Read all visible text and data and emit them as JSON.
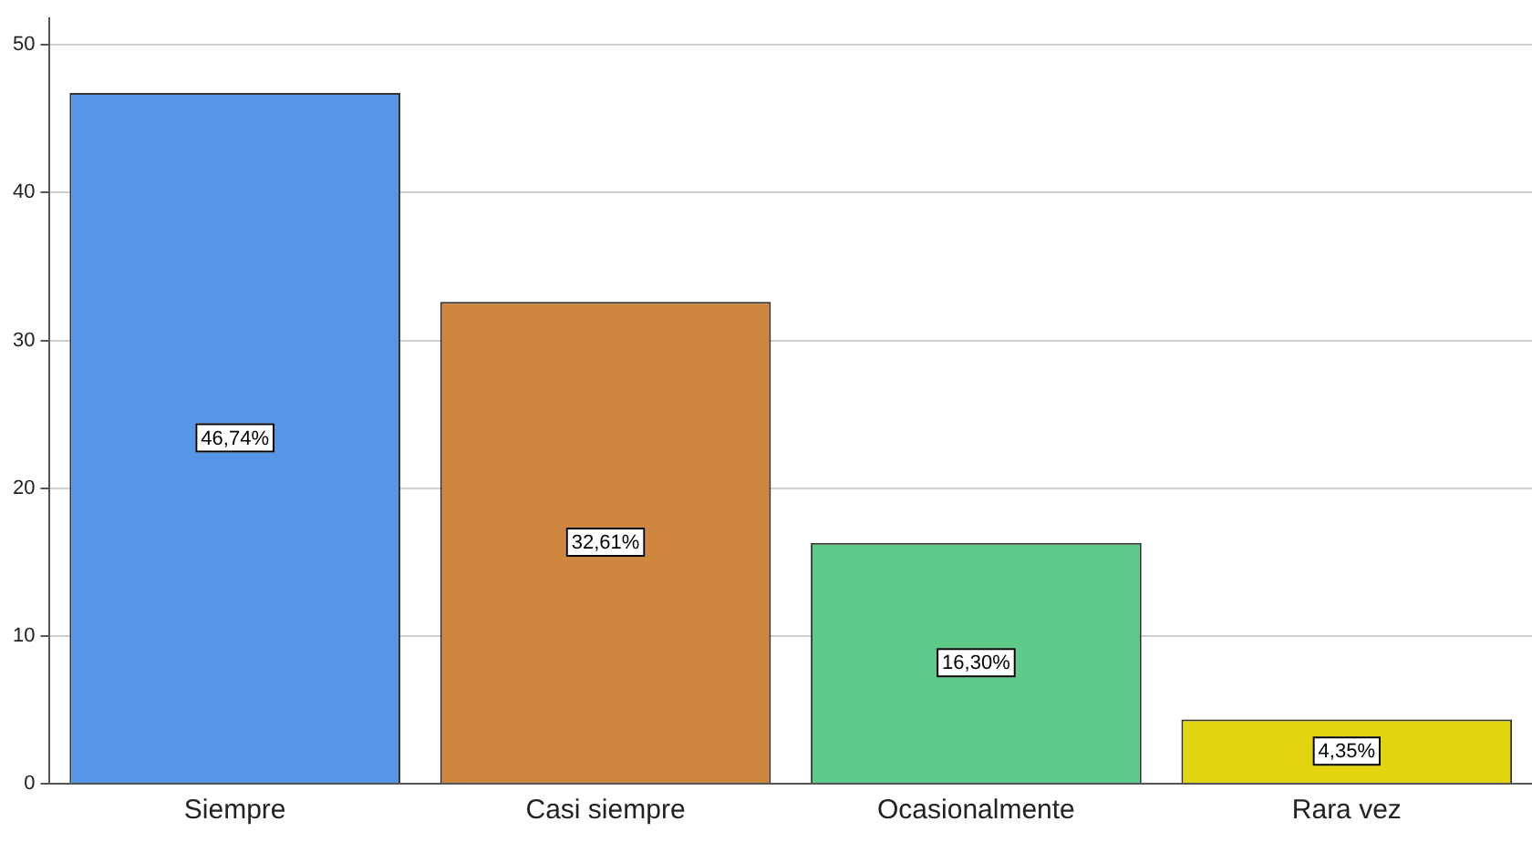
{
  "chart_data": {
    "type": "bar",
    "categories": [
      "Siempre",
      "Casi siempre",
      "Ocasionalmente",
      "Rara vez"
    ],
    "values": [
      46.74,
      32.61,
      16.3,
      4.35
    ],
    "colors": [
      "#5596e6",
      "#cf863f",
      "#5dca8a",
      "#e2d40e"
    ],
    "value_labels": [
      "46,74%",
      "32,61%",
      "16,30%",
      "4,35%"
    ],
    "ylim": [
      0,
      51.8
    ],
    "yticks": [
      0,
      10,
      20,
      30,
      40,
      50
    ],
    "grid": "y",
    "legend": false
  }
}
